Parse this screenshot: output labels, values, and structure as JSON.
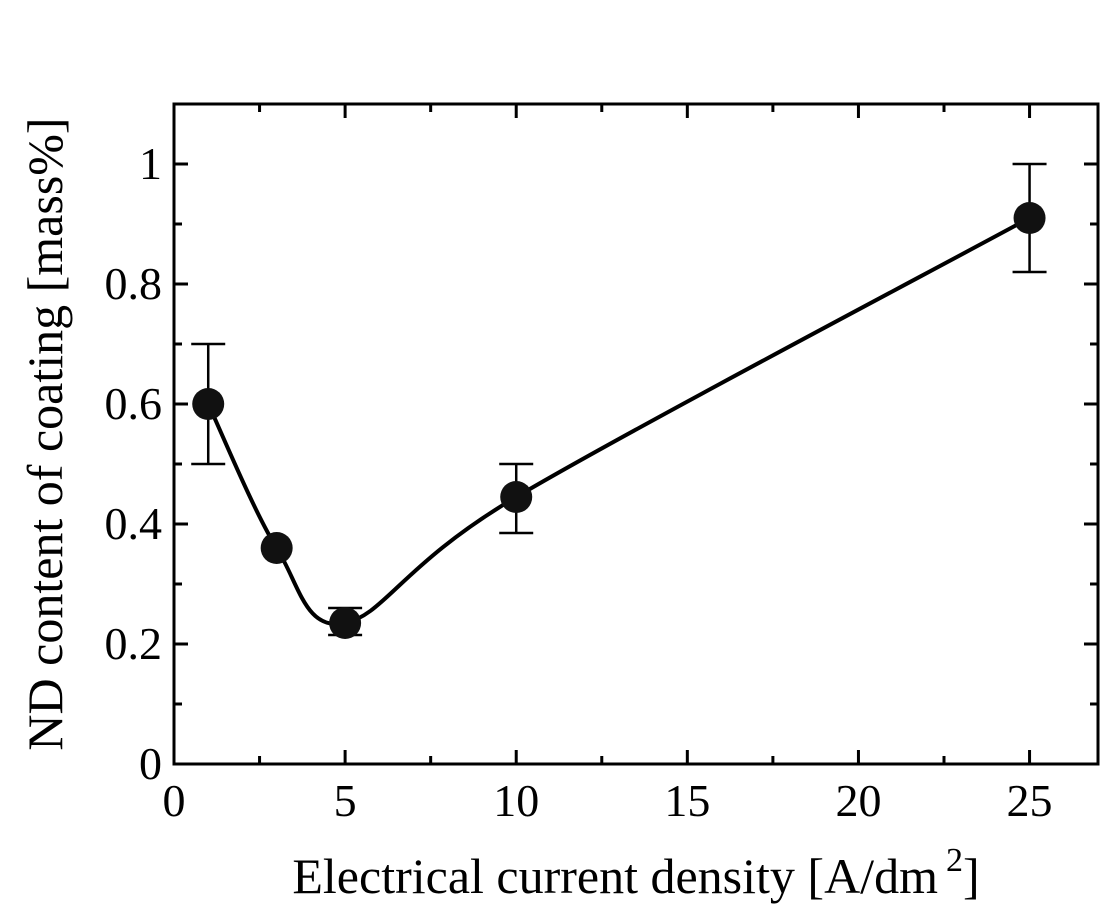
{
  "chart_data": {
    "type": "scatter",
    "title": "",
    "xlabel": "Electrical current density [A/dm",
    "xlabel_superscript": "2",
    "xlabel_suffix": "]",
    "ylabel": "ND content of coating [mass%]",
    "xlim": [
      0,
      27
    ],
    "ylim": [
      0,
      1.1
    ],
    "x_ticks": [
      0,
      5,
      10,
      15,
      20,
      25
    ],
    "x_minor_ticks": [
      2.5,
      7.5,
      12.5,
      17.5,
      22.5
    ],
    "y_ticks": [
      0,
      0.2,
      0.4,
      0.6,
      0.8,
      1
    ],
    "y_minor_ticks": [
      0.1,
      0.3,
      0.5,
      0.7,
      0.9
    ],
    "x_tick_labels": [
      "0",
      "5",
      "10",
      "15",
      "20",
      "25"
    ],
    "y_tick_labels": [
      "0",
      "0.2",
      "0.4",
      "0.6",
      "0.8",
      "1"
    ],
    "grid": false,
    "legend": "none",
    "series": [
      {
        "x": [
          1,
          3,
          5,
          10,
          25
        ],
        "y": [
          0.6,
          0.36,
          0.235,
          0.445,
          0.91
        ],
        "error_lower": [
          0.5,
          null,
          0.215,
          0.385,
          0.82
        ],
        "error_upper": [
          0.7,
          null,
          0.26,
          0.5,
          1.0
        ],
        "marker": "filled-circle",
        "color": "#111111"
      }
    ],
    "fit_curve": {
      "style": "smooth",
      "color": "#000000"
    }
  }
}
